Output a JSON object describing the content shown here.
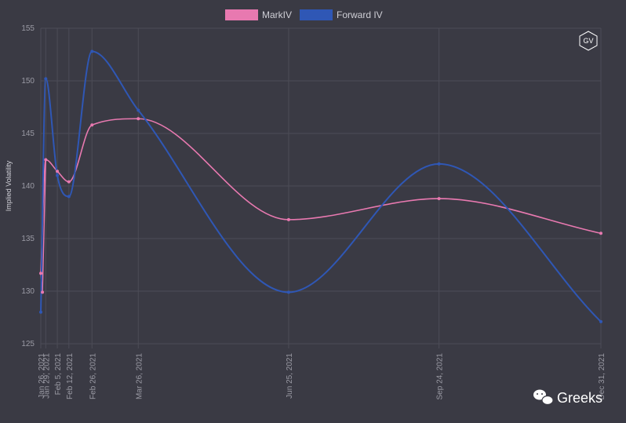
{
  "chart_data": {
    "type": "line",
    "ylabel": "Implied Volatility",
    "ylim": [
      125,
      155
    ],
    "yticks": [
      125,
      130,
      135,
      140,
      145,
      150,
      155
    ],
    "grid": true,
    "legend_position": "top-center",
    "x": [
      "Jan 26, 2021",
      "Jan 29, 2021",
      "Feb 5, 2021",
      "Feb 12, 2021",
      "Feb 26, 2021",
      "Mar 26, 2021",
      "Jun 25, 2021",
      "Sep 24, 2021",
      "Dec 31, 2021"
    ],
    "x_days": [
      0,
      3,
      10,
      17,
      31,
      59,
      150,
      241,
      339
    ],
    "series": [
      {
        "name": "MarkIV",
        "color": "#e879b0",
        "values": [
          131.7,
          142.5,
          141.4,
          140.4,
          145.8,
          146.4,
          136.8,
          138.8,
          135.5
        ],
        "extra_point": {
          "day": 1,
          "value": 129.9
        }
      },
      {
        "name": "Forward IV",
        "color": "#2f57b5",
        "values": [
          128.0,
          150.2,
          141.0,
          139.0,
          152.8,
          147.2,
          129.9,
          142.1,
          127.1
        ]
      }
    ]
  },
  "badge": {
    "label": "GV"
  },
  "watermark": {
    "text": "Greeks",
    "icon": "wechat-icon"
  }
}
